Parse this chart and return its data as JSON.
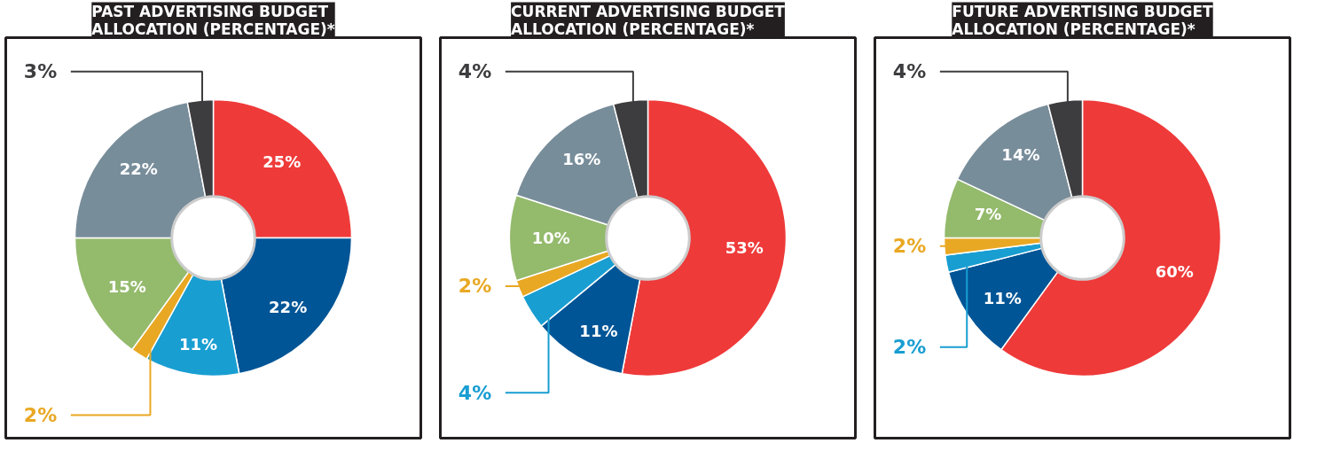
{
  "chart_data": [
    {
      "type": "donut",
      "title": "PAST ADVERTISING BUDGET\nALLOCATION (PERCENTAGE)*",
      "categories": [
        null,
        null,
        null,
        null,
        null,
        null,
        null
      ],
      "values": [
        25,
        22,
        11,
        2,
        15,
        22,
        3
      ],
      "value_labels": [
        "25%",
        "22%",
        "11%",
        "2%",
        "15%",
        "22%",
        "3%"
      ],
      "colors": [
        "#ef3a3a",
        "#005596",
        "#199ed2",
        "#e9a823",
        "#94ba6c",
        "#788d9a",
        "#3d3d3f"
      ]
    },
    {
      "type": "donut",
      "title": "CURRENT ADVERTISING BUDGET\nALLOCATION (PERCENTAGE)*",
      "categories": [
        null,
        null,
        null,
        null,
        null,
        null,
        null
      ],
      "values": [
        53,
        11,
        4,
        2,
        10,
        16,
        4
      ],
      "value_labels": [
        "53%",
        "11%",
        "4%",
        "2%",
        "10%",
        "16%",
        "4%"
      ],
      "colors": [
        "#ef3a3a",
        "#005596",
        "#199ed2",
        "#e9a823",
        "#94ba6c",
        "#788d9a",
        "#3d3d3f"
      ]
    },
    {
      "type": "donut",
      "title": "FUTURE ADVERTISING BUDGET\nALLOCATION (PERCENTAGE)*",
      "categories": [
        null,
        null,
        null,
        null,
        null,
        null,
        null
      ],
      "values": [
        60,
        11,
        2,
        2,
        7,
        14,
        4
      ],
      "value_labels": [
        "60%",
        "11%",
        "2%",
        "2%",
        "7%",
        "14%",
        "4%"
      ],
      "colors": [
        "#ef3a3a",
        "#005596",
        "#199ed2",
        "#e9a823",
        "#94ba6c",
        "#788d9a",
        "#3d3d3f"
      ]
    }
  ]
}
